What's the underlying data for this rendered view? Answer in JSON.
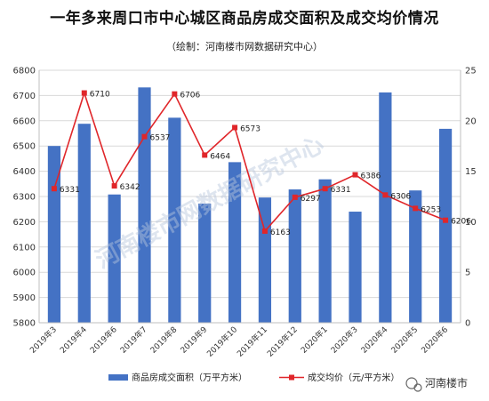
{
  "title": "一年多来周口市中心城区商品房成交面积及成交均价情况",
  "subtitle": "（绘制：河南楼市网数据研究中心）",
  "watermark": "河南楼市网数据研究中心",
  "brand": "河南楼市",
  "colors": {
    "bar": "#4472c4",
    "line": "#e0262a",
    "grid": "#d9d9d9"
  },
  "chart_data": {
    "type": "bar",
    "categories": [
      "2019年3",
      "2019年4",
      "2019年6",
      "2019年7",
      "2019年8",
      "2019年9",
      "2019年10",
      "2019年11",
      "2019年12",
      "2020年1",
      "2020年3",
      "2020年4",
      "2020年5",
      "2020年6"
    ],
    "series": [
      {
        "name": "商品房成交面积（万平方米）",
        "type": "bar",
        "axis": "right",
        "values": [
          17.5,
          19.7,
          12.7,
          23.3,
          20.3,
          11.8,
          15.9,
          12.4,
          13.2,
          14.2,
          11.0,
          22.8,
          13.1,
          19.2
        ]
      },
      {
        "name": "成交均价（元/平方米）",
        "type": "line",
        "axis": "left",
        "values": [
          6331,
          6710,
          6342,
          6537,
          6706,
          6464,
          6573,
          6163,
          6297,
          6331,
          6386,
          6306,
          6253,
          6206
        ]
      }
    ],
    "y_left": {
      "min": 5800,
      "max": 6800,
      "ticks": [
        5800,
        5900,
        6000,
        6100,
        6200,
        6300,
        6400,
        6500,
        6600,
        6700,
        6800
      ]
    },
    "y_right": {
      "min": 0,
      "max": 25,
      "ticks": [
        0,
        5,
        10,
        15,
        20,
        25
      ]
    },
    "grid": true,
    "legend_position": "bottom"
  }
}
